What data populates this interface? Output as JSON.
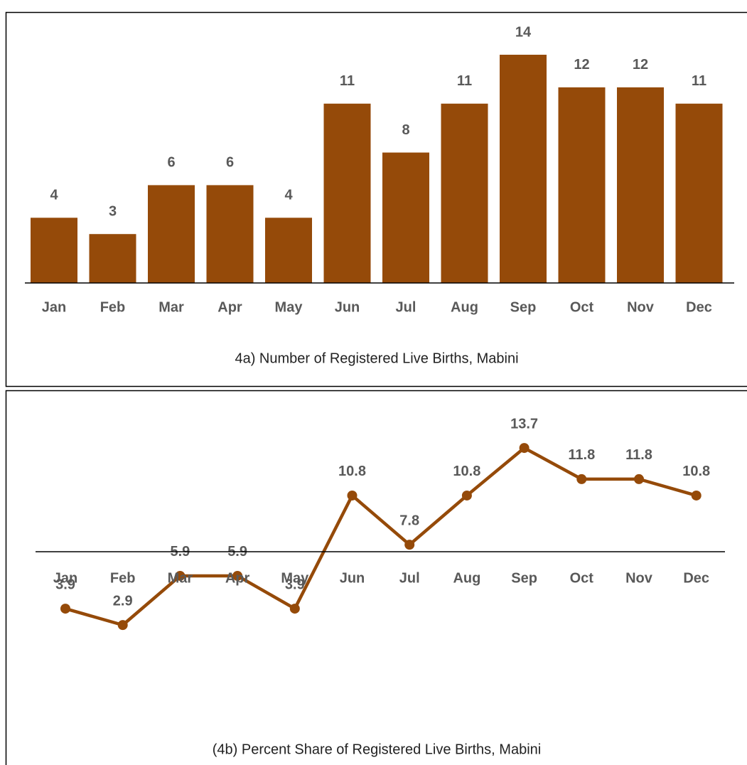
{
  "chart_data": [
    {
      "type": "bar",
      "title": "4a) Number of Registered Live Births, Mabini",
      "categories": [
        "Jan",
        "Feb",
        "Mar",
        "Apr",
        "May",
        "Jun",
        "Jul",
        "Aug",
        "Sep",
        "Oct",
        "Nov",
        "Dec"
      ],
      "values": [
        4,
        3,
        6,
        6,
        4,
        11,
        8,
        11,
        14,
        12,
        12,
        11
      ],
      "color": "#954a09"
    },
    {
      "type": "line",
      "title": "(4b) Percent Share of Registered Live Births, Mabini",
      "categories": [
        "Jan",
        "Feb",
        "Mar",
        "Apr",
        "May",
        "Jun",
        "Jul",
        "Aug",
        "Sep",
        "Oct",
        "Nov",
        "Dec"
      ],
      "values": [
        3.9,
        2.9,
        5.9,
        5.9,
        3.9,
        10.8,
        7.8,
        10.8,
        13.7,
        11.8,
        11.8,
        10.8
      ],
      "color": "#954a09"
    }
  ]
}
